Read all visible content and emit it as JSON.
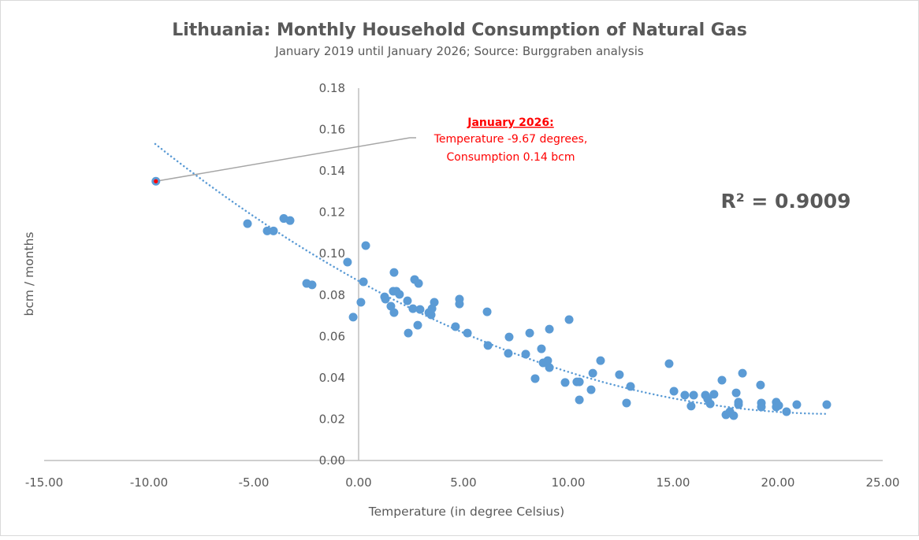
{
  "chart_data": {
    "type": "scatter",
    "title": "Lithuania: Monthly Household Consumption of Natural Gas",
    "subtitle": "January 2019 until January 2026; Source: Burggraben analysis",
    "xlabel": "Temperature (in degree Celsius)",
    "ylabel": "bcm / months",
    "xlim": [
      -15,
      25
    ],
    "ylim": [
      0,
      0.18
    ],
    "x_ticks": [
      "-15.00",
      "-10.00",
      "-5.00",
      "0.00",
      "5.00",
      "10.00",
      "15.00",
      "20.00",
      "25.00"
    ],
    "y_ticks": [
      "0.00",
      "0.02",
      "0.04",
      "0.06",
      "0.08",
      "0.10",
      "0.12",
      "0.14",
      "0.16",
      "0.18"
    ],
    "grid": false,
    "colors": {
      "points": "#5b9bd5",
      "highlight": "#ff0000",
      "trend": "#5b9bd5",
      "leader": "#a6a6a6"
    },
    "highlight_point": {
      "x": -9.67,
      "y": 0.135
    },
    "annotation": {
      "heading": "January 2026:",
      "line1": "Temperature -9.67 degrees,",
      "line2": "Consumption 0.14 bcm"
    },
    "trendline": {
      "type": "polynomial",
      "order": 2,
      "coefficients": [
        0.0868,
        -0.00563,
        0.0001232
      ],
      "x_range": [
        -9.7,
        22.3
      ],
      "r2_label": "R² = 0.9009"
    },
    "points": [
      [
        -9.67,
        0.135
      ],
      [
        -5.3,
        0.1145
      ],
      [
        -4.36,
        0.111
      ],
      [
        -4.06,
        0.111
      ],
      [
        -3.57,
        0.117
      ],
      [
        -3.27,
        0.116
      ],
      [
        -2.48,
        0.0856
      ],
      [
        -2.22,
        0.0849
      ],
      [
        -0.53,
        0.0959
      ],
      [
        -0.26,
        0.0693
      ],
      [
        0.11,
        0.0765
      ],
      [
        0.23,
        0.0864
      ],
      [
        0.34,
        0.1039
      ],
      [
        1.24,
        0.0791
      ],
      [
        1.28,
        0.078
      ],
      [
        1.54,
        0.0746
      ],
      [
        1.65,
        0.0818
      ],
      [
        1.69,
        0.0909
      ],
      [
        1.8,
        0.0818
      ],
      [
        1.69,
        0.0715
      ],
      [
        1.95,
        0.0803
      ],
      [
        2.33,
        0.0772
      ],
      [
        2.37,
        0.0616
      ],
      [
        2.59,
        0.0734
      ],
      [
        2.67,
        0.0875
      ],
      [
        2.86,
        0.0856
      ],
      [
        2.82,
        0.0654
      ],
      [
        2.93,
        0.073
      ],
      [
        3.35,
        0.0715
      ],
      [
        3.46,
        0.0704
      ],
      [
        3.5,
        0.0734
      ],
      [
        3.61,
        0.0765
      ],
      [
        4.62,
        0.0647
      ],
      [
        4.81,
        0.078
      ],
      [
        4.81,
        0.0757
      ],
      [
        5.19,
        0.0616
      ],
      [
        6.13,
        0.0719
      ],
      [
        6.17,
        0.0556
      ],
      [
        7.18,
        0.0597
      ],
      [
        7.14,
        0.0518
      ],
      [
        7.97,
        0.0514
      ],
      [
        8.16,
        0.0616
      ],
      [
        8.42,
        0.0396
      ],
      [
        8.72,
        0.054
      ],
      [
        8.8,
        0.0472
      ],
      [
        9.02,
        0.0483
      ],
      [
        9.1,
        0.0449
      ],
      [
        9.1,
        0.0635
      ],
      [
        9.85,
        0.0377
      ],
      [
        10.04,
        0.0681
      ],
      [
        10.41,
        0.038
      ],
      [
        10.53,
        0.038
      ],
      [
        10.53,
        0.0293
      ],
      [
        11.09,
        0.0342
      ],
      [
        11.17,
        0.0422
      ],
      [
        11.54,
        0.0483
      ],
      [
        12.44,
        0.0415
      ],
      [
        12.78,
        0.0278
      ],
      [
        12.97,
        0.0358
      ],
      [
        14.81,
        0.0468
      ],
      [
        15.04,
        0.0335
      ],
      [
        15.56,
        0.0316
      ],
      [
        15.86,
        0.0263
      ],
      [
        15.98,
        0.0316
      ],
      [
        16.54,
        0.0316
      ],
      [
        16.65,
        0.0297
      ],
      [
        16.77,
        0.0274
      ],
      [
        16.95,
        0.032
      ],
      [
        17.33,
        0.0388
      ],
      [
        17.52,
        0.0221
      ],
      [
        17.71,
        0.0236
      ],
      [
        17.89,
        0.0217
      ],
      [
        18.01,
        0.0327
      ],
      [
        18.12,
        0.027
      ],
      [
        18.12,
        0.0282
      ],
      [
        18.31,
        0.0422
      ],
      [
        19.17,
        0.0365
      ],
      [
        19.21,
        0.0278
      ],
      [
        19.21,
        0.0259
      ],
      [
        19.92,
        0.0282
      ],
      [
        19.92,
        0.0259
      ],
      [
        20.04,
        0.0266
      ],
      [
        20.41,
        0.0236
      ],
      [
        20.9,
        0.027
      ],
      [
        22.33,
        0.027
      ]
    ]
  }
}
